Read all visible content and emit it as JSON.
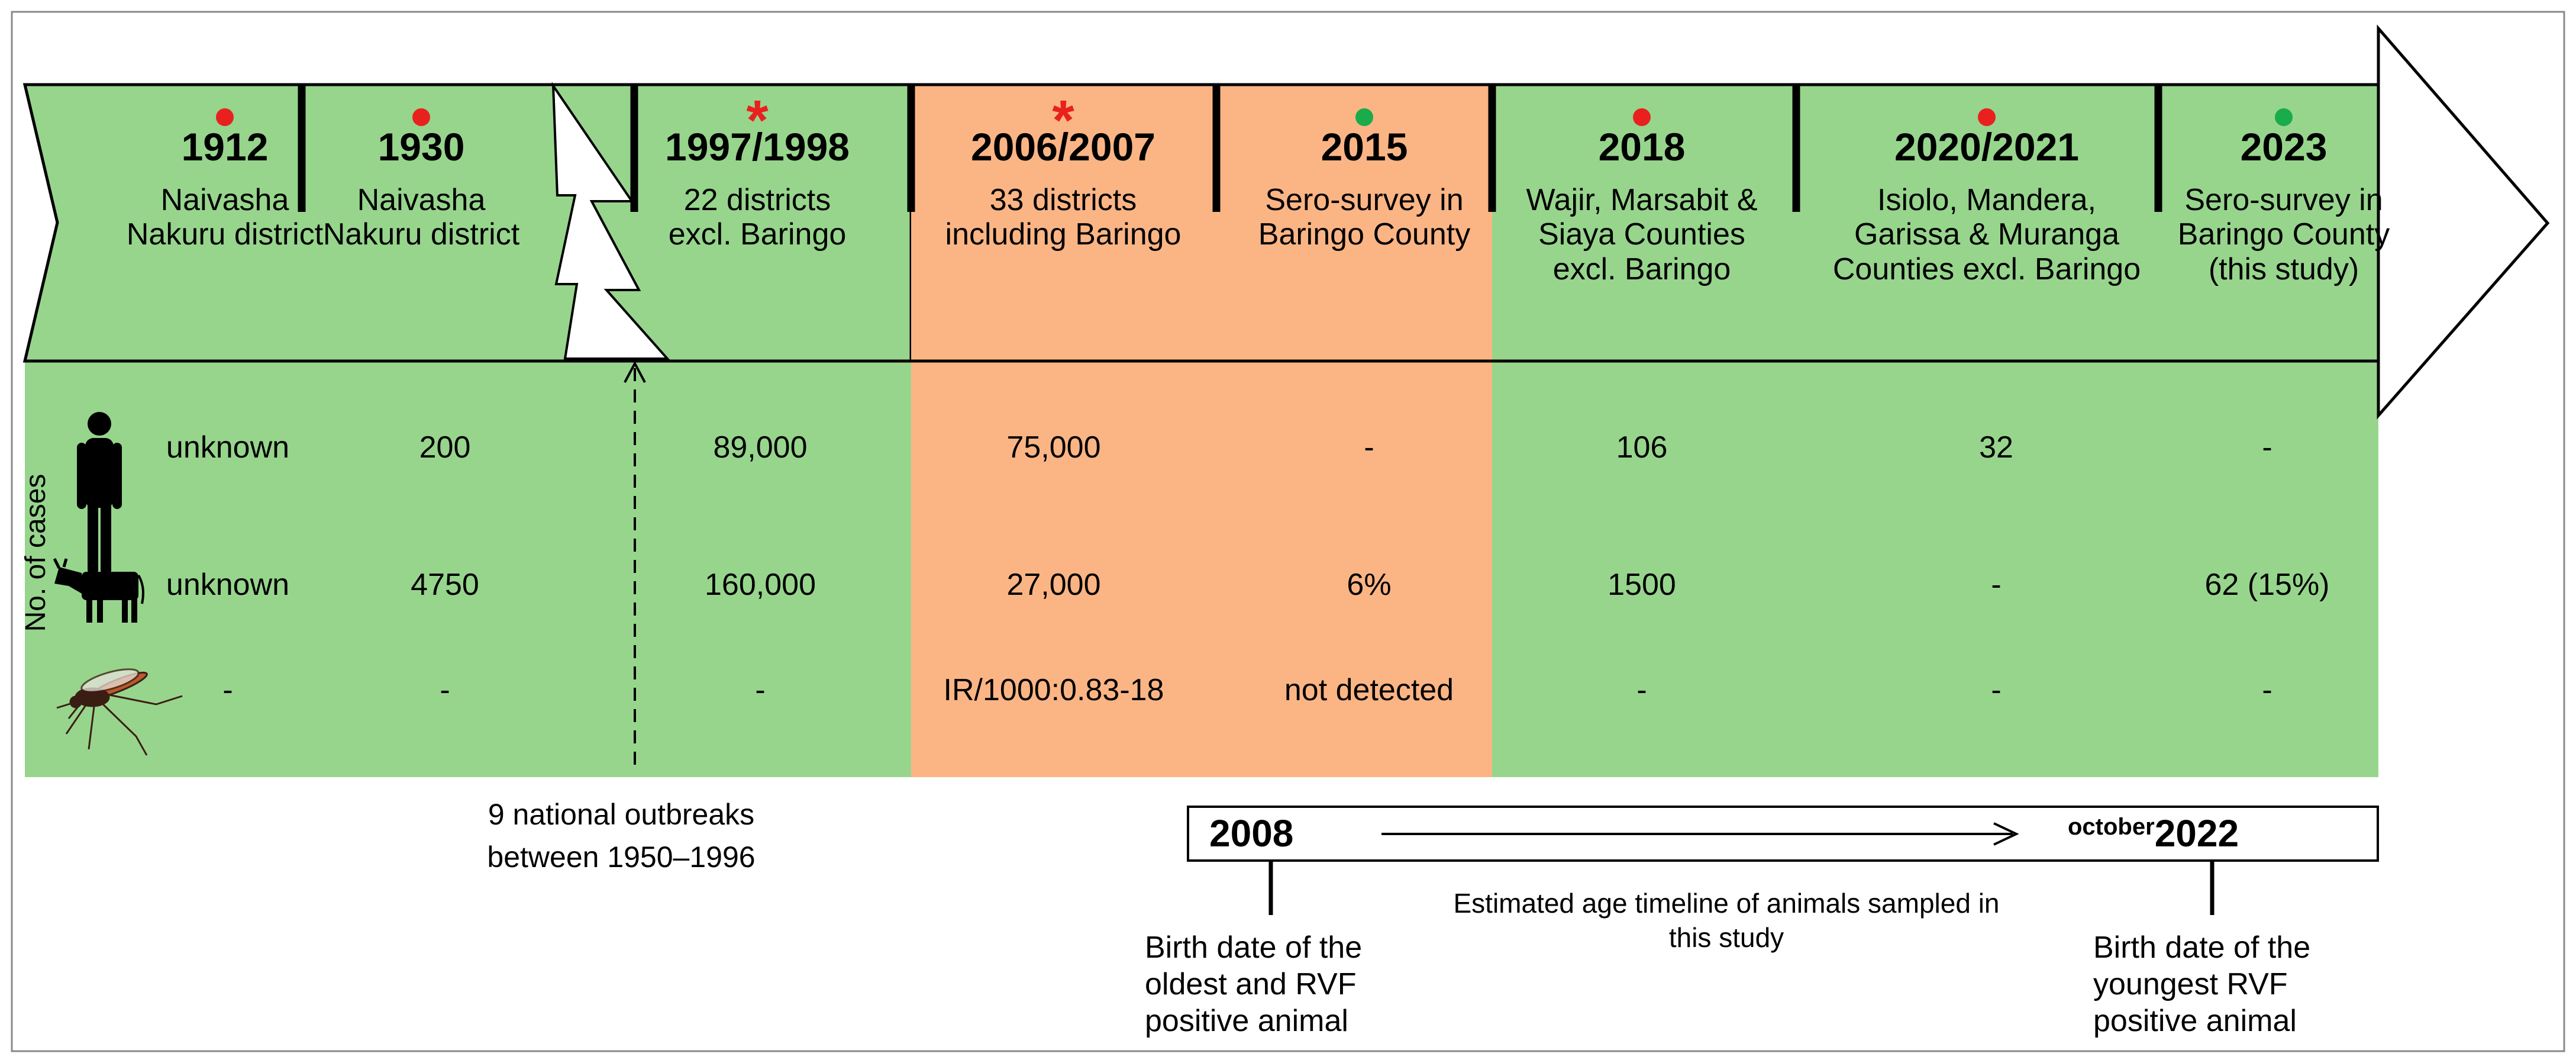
{
  "colors": {
    "green": "#97d58d",
    "orange": "#fbb585",
    "red": "#e8211f",
    "green_dot": "#1aab4b",
    "black": "#000000",
    "white": "#ffffff",
    "frame": "#8a8a8a"
  },
  "row_label": "No. of cases",
  "row_icons": [
    "human-icon",
    "cattle-icon",
    "mosquito-icon"
  ],
  "timeline_columns": [
    {
      "year": "1912",
      "marker": "dot-red",
      "lines": [
        "Naivasha",
        "Nakuru district"
      ],
      "bg": "green",
      "human": "unknown",
      "cattle": "unknown",
      "mosquito": "-"
    },
    {
      "year": "1930",
      "marker": "dot-red",
      "lines": [
        "Naivasha",
        "Nakuru district"
      ],
      "bg": "green",
      "human": "200",
      "cattle": "4750",
      "mosquito": "-"
    },
    {
      "year": "1997/1998",
      "marker": "asterisk-red",
      "lines": [
        "22 districts",
        "excl. Baringo"
      ],
      "bg": "green",
      "human": "89,000",
      "cattle": "160,000",
      "mosquito": "-"
    },
    {
      "year": "2006/2007",
      "marker": "asterisk-red",
      "lines": [
        "33 districts",
        "including Baringo"
      ],
      "bg": "orange",
      "human": "75,000",
      "cattle": "27,000",
      "mosquito": "IR/1000:0.83-18"
    },
    {
      "year": "2015",
      "marker": "dot-green",
      "lines": [
        "Sero-survey in",
        "Baringo County"
      ],
      "bg": "orange",
      "human": "-",
      "cattle": "6%",
      "mosquito": "not detected"
    },
    {
      "year": "2018",
      "marker": "dot-red",
      "lines": [
        "Wajir, Marsabit &",
        "Siaya Counties",
        "excl. Baringo"
      ],
      "bg": "green",
      "human": "106",
      "cattle": "1500",
      "mosquito": "-"
    },
    {
      "year": "2020/2021",
      "marker": "dot-red",
      "lines": [
        "Isiolo, Mandera,",
        "Garissa & Muranga",
        "Counties excl. Baringo"
      ],
      "bg": "green",
      "human": "32",
      "cattle": "-",
      "mosquito": "-"
    },
    {
      "year": "2023",
      "marker": "dot-green",
      "lines": [
        "Sero-survey in",
        "Baringo County",
        "(this study)"
      ],
      "bg": "green",
      "human": "-",
      "cattle": "62 (15%)",
      "mosquito": "-"
    }
  ],
  "gap_note": [
    "9 national outbreaks",
    "between 1950–1996"
  ],
  "age_timeline": {
    "start_year": "2008",
    "end_prefix": "october",
    "end_year": "2022",
    "caption": [
      "Estimated age timeline of animals sampled in",
      "this study"
    ],
    "start_note": [
      "Birth date of the",
      "oldest and RVF",
      "positive animal"
    ],
    "end_note": [
      "Birth date of the",
      "youngest RVF",
      "positive animal"
    ]
  }
}
